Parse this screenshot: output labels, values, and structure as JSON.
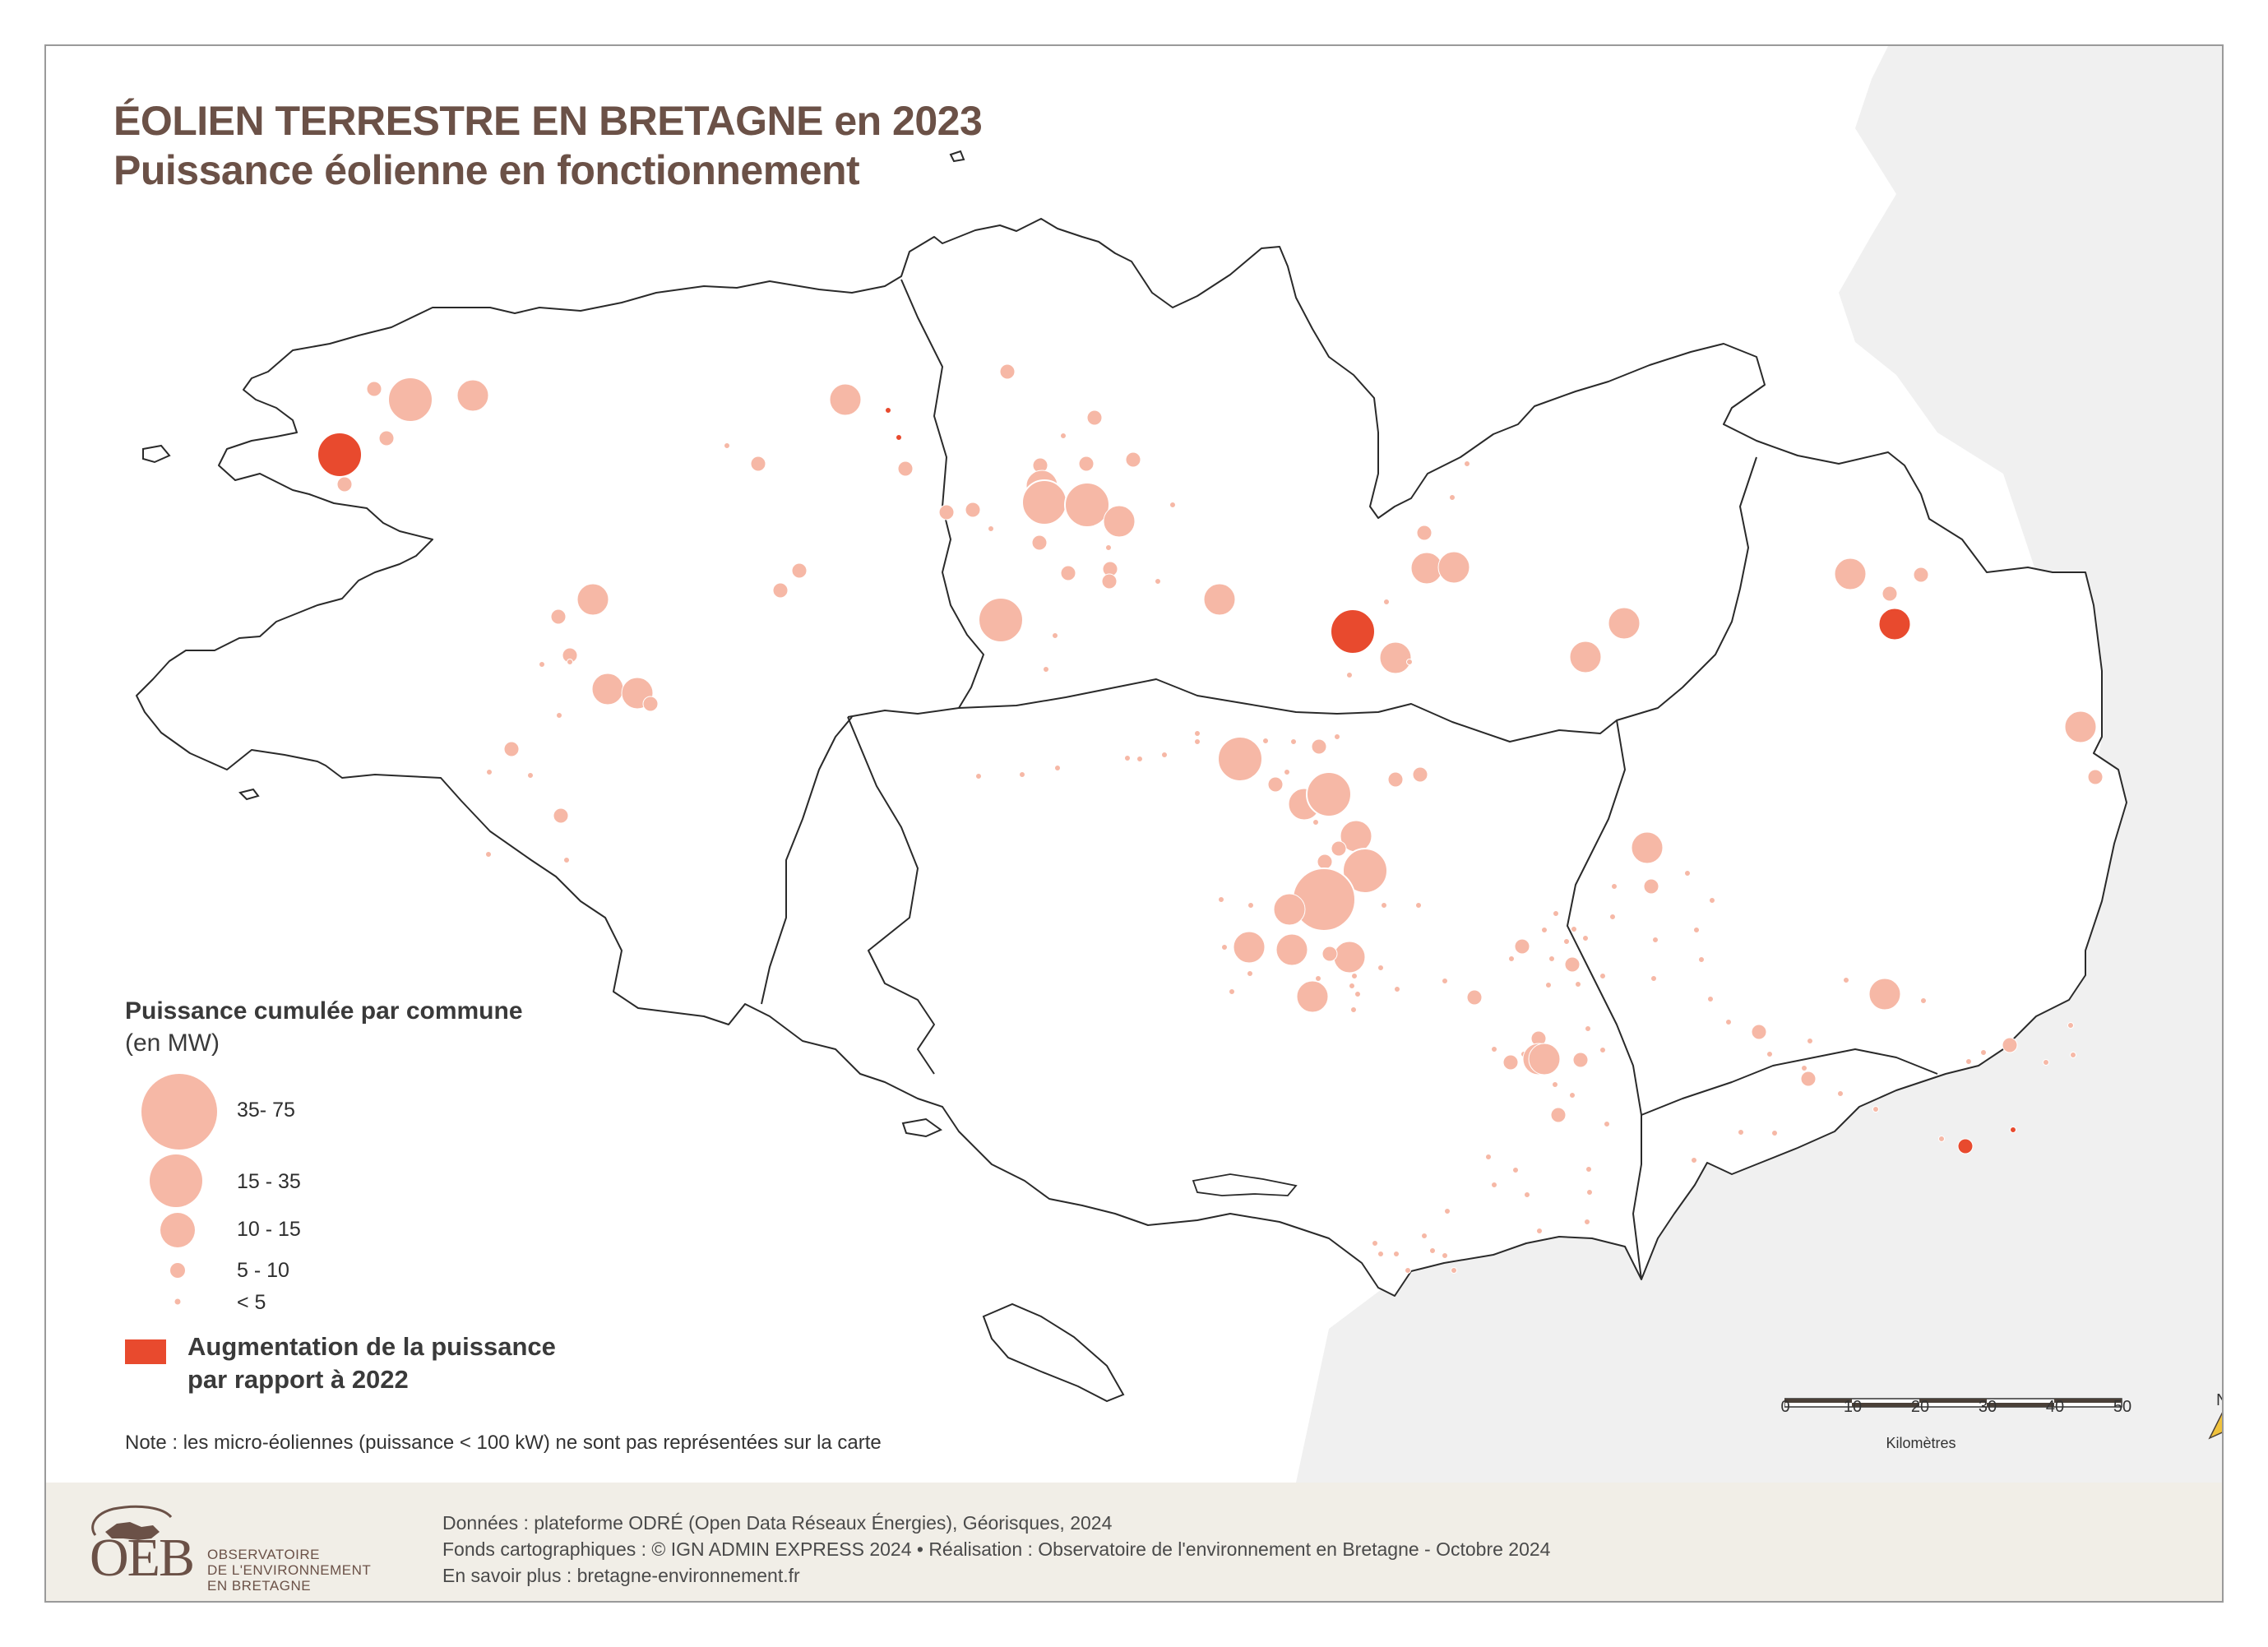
{
  "title": {
    "line1": "ÉOLIEN TERRESTRE EN BRETAGNE en 2023",
    "line2": "Puissance éolienne en fonctionnement"
  },
  "legend": {
    "title": "Puissance cumulée par commune",
    "unit": "(en MW)",
    "classes": [
      {
        "label": "35- 75"
      },
      {
        "label": "15 - 35"
      },
      {
        "label": "10 - 15"
      },
      {
        "label": "5 - 10"
      },
      {
        "label": "< 5"
      }
    ],
    "increase_line1": "Augmentation de la puissance",
    "increase_line2": "par rapport à 2022"
  },
  "note": "Note : les micro-éoliennes (puissance < 100 kW) ne sont pas représentées sur la carte",
  "scale": {
    "ticks": [
      "0",
      "10",
      "20",
      "30",
      "40",
      "50"
    ],
    "unit": "Kilomètres",
    "north": "N"
  },
  "footer": {
    "logo_word": "OEB",
    "logo_sub": [
      "OBSERVATOIRE",
      "DE L'ENVIRONNEMENT",
      "EN BRETAGNE"
    ],
    "credits": [
      "Données : plateforme ODRÉ (Open Data Réseaux Énergies), Géorisques, 2024",
      "Fonds cartographiques : © IGN ADMIN EXPRESS 2024 • Réalisation : Observatoire de l'environnement en Bretagne - Octobre 2024",
      "En savoir plus : bretagne-environnement.fr"
    ]
  },
  "colors": {
    "circle_fill": "#f6b8a6",
    "increase_fill": "#e84a2e",
    "title": "#6b5147",
    "neighbor_land": "#f0f0f0",
    "footer_bg": "#f1eee7"
  }
}
